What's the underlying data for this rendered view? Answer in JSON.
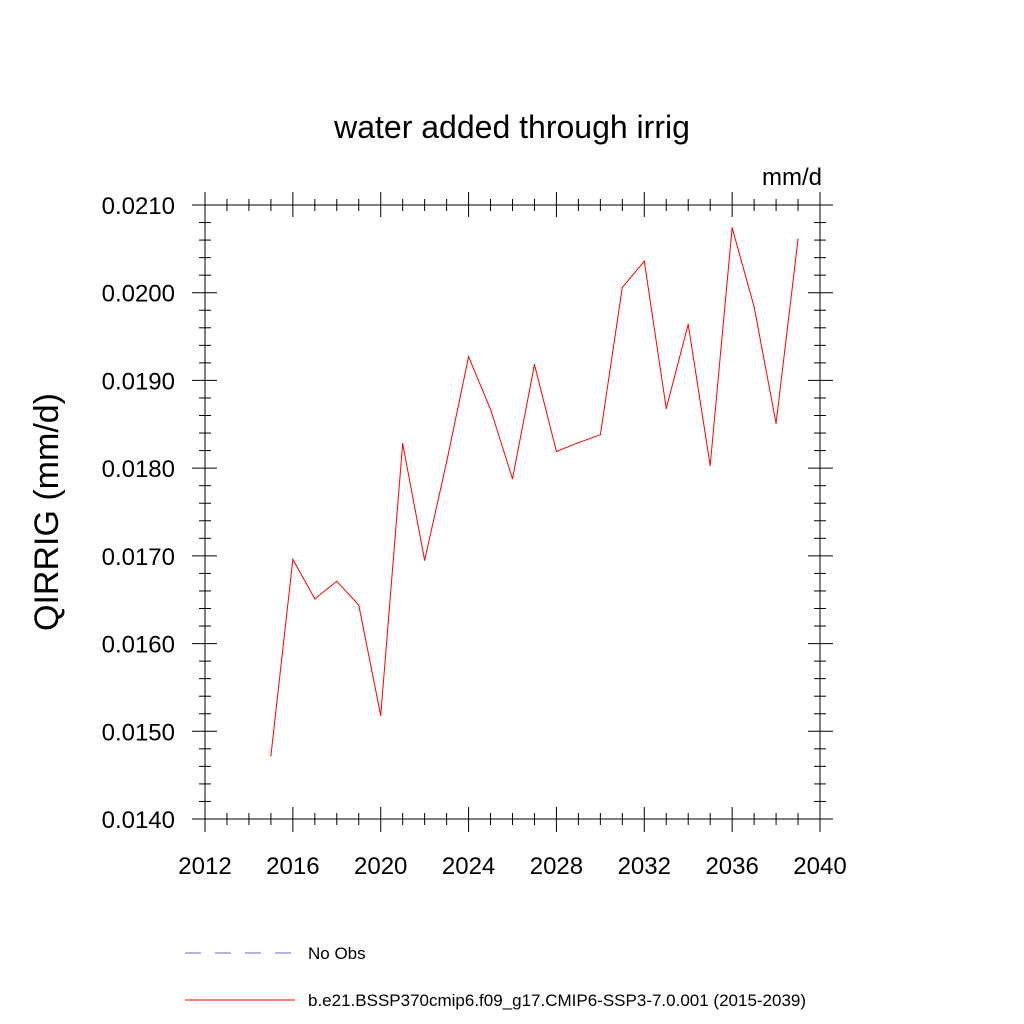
{
  "chart_data": {
    "type": "line",
    "title": "water added through irrig",
    "units": "mm/d",
    "ylabel": "QIRRIG  (mm/d)",
    "xlabel": "",
    "xlim": [
      2012,
      2040
    ],
    "ylim": [
      0.014,
      0.021
    ],
    "x_ticks": [
      2012,
      2016,
      2020,
      2024,
      2028,
      2032,
      2036,
      2040
    ],
    "x_tick_labels": [
      "2012",
      "2016",
      "2020",
      "2024",
      "2028",
      "2032",
      "2036",
      "2040"
    ],
    "y_ticks": [
      0.014,
      0.015,
      0.016,
      0.017,
      0.018,
      0.019,
      0.02,
      0.021
    ],
    "y_tick_labels": [
      "0.0140",
      "0.0150",
      "0.0160",
      "0.0170",
      "0.0180",
      "0.0190",
      "0.0200",
      "0.0210"
    ],
    "series": [
      {
        "name": "b.e21.BSSP370cmip6.f09_g17.CMIP6-SSP3-7.0.001 (2015-2039)",
        "color": "#ff0000",
        "style": "solid",
        "x": [
          2015,
          2016,
          2017,
          2018,
          2019,
          2020,
          2021,
          2022,
          2023,
          2024,
          2025,
          2026,
          2027,
          2028,
          2029,
          2030,
          2031,
          2032,
          2033,
          2034,
          2035,
          2036,
          2037,
          2038,
          2039
        ],
        "y": [
          0.01472,
          0.01696,
          0.01651,
          0.01671,
          0.01644,
          0.01518,
          0.01828,
          0.01695,
          0.01807,
          0.01927,
          0.01867,
          0.01788,
          0.01918,
          0.01819,
          0.01829,
          0.01838,
          0.02006,
          0.02036,
          0.01868,
          0.01964,
          0.01803,
          0.02074,
          0.01984,
          0.01851,
          0.02061
        ]
      }
    ],
    "legend": [
      {
        "label": "No Obs",
        "color": "#6666cc",
        "style": "dashed"
      },
      {
        "label": "b.e21.BSSP370cmip6.f09_g17.CMIP6-SSP3-7.0.001 (2015-2039)",
        "color": "#ff0000",
        "style": "solid"
      }
    ],
    "legend_position": "bottom"
  }
}
